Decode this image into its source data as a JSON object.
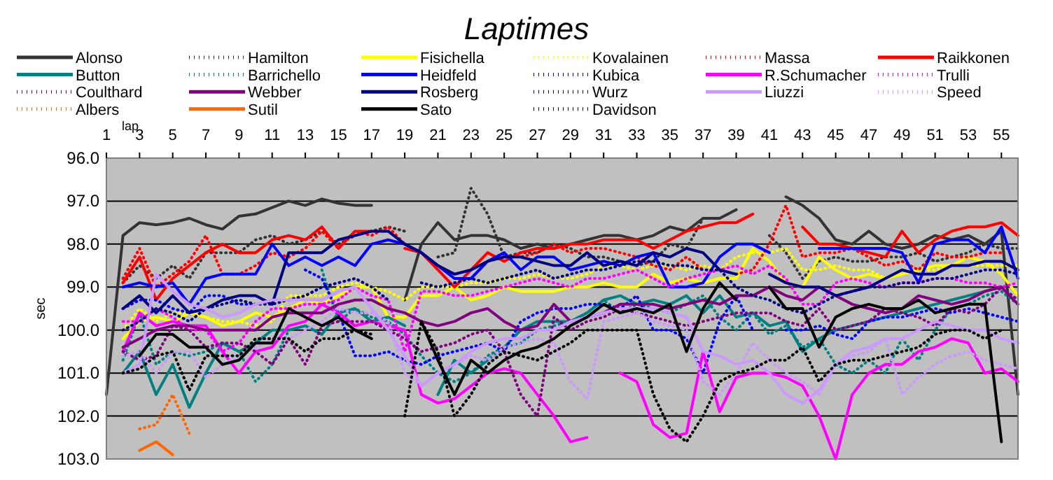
{
  "chart_data": {
    "type": "line",
    "title": "Laptimes",
    "xlabel": "lap",
    "ylabel": "sec",
    "x": [
      1,
      2,
      3,
      4,
      5,
      6,
      7,
      8,
      9,
      10,
      11,
      12,
      13,
      14,
      15,
      16,
      17,
      18,
      19,
      20,
      21,
      22,
      23,
      24,
      25,
      26,
      27,
      28,
      29,
      30,
      31,
      32,
      33,
      34,
      35,
      36,
      37,
      38,
      39,
      40,
      41,
      42,
      43,
      44,
      45,
      46,
      47,
      48,
      49,
      50,
      51,
      52,
      53,
      54,
      55,
      56
    ],
    "xlim": [
      1,
      56
    ],
    "xticks": [
      1,
      3,
      5,
      7,
      9,
      11,
      13,
      15,
      17,
      19,
      21,
      23,
      25,
      27,
      29,
      31,
      33,
      35,
      37,
      39,
      41,
      43,
      45,
      47,
      49,
      51,
      53,
      55
    ],
    "ylim": [
      103,
      96
    ],
    "yticks": [
      {
        "value": 96,
        "label": "96.0"
      },
      {
        "value": 97,
        "label": "97.0"
      },
      {
        "value": 98,
        "label": "98.0"
      },
      {
        "value": 99,
        "label": "99.0"
      },
      {
        "value": 100,
        "label": "100.0"
      },
      {
        "value": 101,
        "label": "101.0"
      },
      {
        "value": 102,
        "label": "102.0"
      },
      {
        "value": 103,
        "label": "103.0"
      }
    ],
    "grid": "y",
    "legend": "top",
    "series": [
      {
        "name": "Alonso",
        "color": "#333333",
        "line_style": "solid",
        "values": [
          101.5,
          97.8,
          97.5,
          97.55,
          97.5,
          97.4,
          97.55,
          97.65,
          97.35,
          97.3,
          97.15,
          97.0,
          97.1,
          96.95,
          97.05,
          97.1,
          97.1,
          null,
          99.3,
          98.0,
          97.5,
          97.9,
          97.8,
          97.8,
          97.9,
          98.1,
          98.0,
          98.1,
          98.0,
          97.9,
          97.8,
          97.8,
          97.9,
          97.8,
          97.6,
          97.7,
          97.4,
          97.4,
          97.2,
          null,
          null,
          96.9,
          97.1,
          97.4,
          97.9,
          98.0,
          97.7,
          98.0,
          98.1,
          98.0,
          97.8,
          97.9,
          97.8,
          98.0,
          97.7,
          101.5
        ]
      },
      {
        "name": "Hamilton",
        "color": "#333333",
        "line_style": "dotted",
        "values": [
          null,
          98.9,
          98.5,
          98.8,
          98.5,
          98.8,
          98.2,
          98.2,
          98.2,
          97.9,
          97.8,
          98.0,
          97.9,
          97.7,
          98.0,
          97.8,
          97.7,
          97.6,
          97.7,
          null,
          98.3,
          98.2,
          96.7,
          97.3,
          98.3,
          98.2,
          98.2,
          98.0,
          98.1,
          98.3,
          98.3,
          98.4,
          98.5,
          98.4,
          98.0,
          98.1,
          97.4,
          97.4,
          null,
          null,
          97.8,
          98.2,
          98.8,
          98.4,
          98.3,
          98.4,
          98.4,
          98.3,
          98.3,
          98.2,
          98.4,
          98.3,
          98.2,
          98.0,
          98.1,
          98.1
        ]
      },
      {
        "name": "Fisichella",
        "color": "#ffff00",
        "line_style": "solid",
        "values": [
          null,
          100.2,
          99.8,
          99.7,
          99.8,
          99.6,
          99.7,
          99.9,
          99.8,
          99.6,
          99.7,
          99.5,
          99.3,
          99.4,
          99.2,
          99.0,
          99.0,
          99.7,
          99.7,
          99.2,
          99.2,
          99.0,
          99.3,
          99.2,
          99.0,
          99.1,
          99.1,
          99.1,
          99.0,
          99.0,
          98.9,
          99.0,
          99.0,
          98.7,
          98.9,
          98.8,
          98.9,
          98.8,
          98.8,
          98.1,
          98.4,
          98.9,
          99.0,
          98.3,
          98.6,
          98.8,
          98.7,
          98.8,
          98.7,
          98.6,
          98.5,
          98.5,
          98.3,
          98.4,
          98.7,
          99.2
        ]
      },
      {
        "name": "Kovalainen",
        "color": "#ffff00",
        "line_style": "dotted",
        "values": [
          null,
          100.0,
          99.5,
          99.8,
          99.6,
          99.6,
          99.7,
          99.8,
          99.8,
          99.9,
          99.8,
          99.2,
          99.2,
          99.2,
          99.0,
          98.9,
          99.0,
          99.1,
          99.3,
          99.0,
          99.0,
          99.0,
          98.9,
          98.9,
          98.8,
          98.8,
          98.7,
          98.8,
          98.8,
          98.7,
          98.5,
          98.5,
          98.6,
          98.5,
          98.5,
          98.6,
          98.5,
          98.6,
          98.3,
          98.2,
          98.2,
          98.1,
          98.6,
          98.6,
          98.5,
          98.6,
          98.6,
          98.8,
          98.7,
          98.6,
          98.6,
          98.5,
          98.5,
          98.5,
          98.5,
          98.5
        ]
      },
      {
        "name": "Massa",
        "color": "#ff0000",
        "line_style": "dotted",
        "values": [
          null,
          98.8,
          98.1,
          99.0,
          98.7,
          98.4,
          97.8,
          98.7,
          98.7,
          98.5,
          98.2,
          98.3,
          98.1,
          97.7,
          98.1,
          97.7,
          97.8,
          97.6,
          98.0,
          98.2,
          98.5,
          98.7,
          98.6,
          98.4,
          98.3,
          98.3,
          98.2,
          98.0,
          98.2,
          98.1,
          98.1,
          98.2,
          98.3,
          98.5,
          98.6,
          98.3,
          98.6,
          null,
          98.7,
          98.6,
          98.0,
          97.1,
          98.3,
          98.2,
          98.2,
          98.1,
          98.3,
          98.5,
          98.4,
          98.6,
          98.2,
          98.3,
          98.3,
          98.2,
          98.2,
          null
        ]
      },
      {
        "name": "Raikkonen",
        "color": "#ff0000",
        "line_style": "solid",
        "values": [
          null,
          98.9,
          98.3,
          99.3,
          98.8,
          98.5,
          98.2,
          98.0,
          98.2,
          98.2,
          97.9,
          97.8,
          97.9,
          97.6,
          98.1,
          97.7,
          97.7,
          null,
          98.1,
          98.2,
          98.6,
          99.0,
          98.6,
          98.2,
          98.4,
          98.2,
          98.1,
          98.1,
          98.0,
          98.0,
          97.9,
          97.9,
          97.9,
          98.1,
          97.9,
          97.7,
          97.6,
          97.5,
          97.5,
          97.3,
          null,
          null,
          97.6,
          98.0,
          98.0,
          98.1,
          98.2,
          98.3,
          97.7,
          98.2,
          97.9,
          97.7,
          97.6,
          97.6,
          97.5,
          97.8
        ]
      },
      {
        "name": "Button",
        "color": "#008080",
        "line_style": "solid",
        "values": [
          null,
          101.0,
          100.5,
          101.5,
          100.8,
          101.8,
          101.0,
          100.3,
          100.5,
          100.3,
          100.0,
          100.0,
          99.9,
          100.1,
          99.6,
          99.5,
          99.8,
          99.7,
          99.9,
          null,
          101.5,
          100.7,
          101.0,
          100.7,
          100.4,
          100.0,
          99.8,
          99.8,
          99.8,
          99.6,
          99.3,
          99.2,
          99.4,
          99.3,
          99.4,
          99.2,
          99.6,
          99.2,
          99.7,
          99.6,
          99.9,
          99.8,
          100.5,
          100.2,
          100.0,
          99.9,
          99.8,
          99.7,
          99.6,
          99.5,
          99.4,
          99.3,
          99.2,
          99.1,
          99.0,
          null
        ]
      },
      {
        "name": "Barrichello",
        "color": "#008080",
        "line_style": "dotted",
        "values": [
          null,
          100.7,
          99.6,
          100.8,
          100.5,
          100.6,
          100.5,
          100.3,
          100.5,
          101.2,
          100.8,
          100.0,
          null,
          98.6,
          99.8,
          99.5,
          99.7,
          99.8,
          100.1,
          100.6,
          101.0,
          101.2,
          101.0,
          100.6,
          100.4,
          100.3,
          100.0,
          99.9,
          99.8,
          99.6,
          99.3,
          99.6,
          99.4,
          99.5,
          99.6,
          99.4,
          99.2,
          99.7,
          100.0,
          99.6,
          100.1,
          99.9,
          100.4,
          100.2,
          100.8,
          101.0,
          100.7,
          101.0,
          100.2,
          100.7,
          100.0,
          99.5,
          99.4,
          99.2,
          99.1,
          99.4
        ]
      },
      {
        "name": "Heidfeld",
        "color": "#0000ff",
        "line_style": "solid",
        "values": [
          null,
          99.0,
          98.9,
          99.0,
          98.9,
          99.4,
          98.8,
          98.7,
          98.7,
          98.7,
          98.0,
          98.5,
          98.3,
          98.5,
          98.3,
          98.5,
          98.0,
          97.9,
          98.0,
          98.2,
          98.5,
          98.8,
          98.8,
          98.4,
          98.2,
          98.6,
          98.3,
          98.3,
          98.6,
          98.5,
          98.4,
          98.5,
          98.3,
          98.2,
          99.0,
          99.0,
          98.9,
          98.3,
          98.0,
          98.0,
          98.2,
          null,
          null,
          98.1,
          98.1,
          98.1,
          98.1,
          98.1,
          98.2,
          98.9,
          98.0,
          97.9,
          97.9,
          98.2,
          97.6,
          98.8
        ]
      },
      {
        "name": "Kubica",
        "color": "#0000ff",
        "line_style": "dotted",
        "values": [
          null,
          99.5,
          99.3,
          99.3,
          99.5,
          99.6,
          99.2,
          99.2,
          99.4,
          99.4,
          null,
          null,
          98.6,
          98.8,
          99.6,
          100.6,
          100.6,
          100.5,
          100.7,
          100.8,
          100.6,
          100.5,
          100.4,
          100.3,
          100.5,
          99.8,
          99.6,
          99.5,
          99.5,
          99.4,
          99.4,
          99.5,
          99.2,
          100.0,
          100.0,
          100.2,
          101.0,
          99.8,
          99.2,
          100.0,
          null,
          100.0,
          100.0,
          99.9,
          100.1,
          100.2,
          99.8,
          99.7,
          99.7,
          99.6,
          99.5,
          99.6,
          99.5,
          99.6,
          99.7,
          99.8
        ]
      },
      {
        "name": "R.Schumacher",
        "color": "#ff00ff",
        "line_style": "solid",
        "values": [
          null,
          100.5,
          99.6,
          99.9,
          99.8,
          99.9,
          99.9,
          100.5,
          101.0,
          100.5,
          100.4,
          99.9,
          99.8,
          99.4,
          99.6,
          99.9,
          99.8,
          99.9,
          100.0,
          101.5,
          101.7,
          101.6,
          101.3,
          101.0,
          100.9,
          101.0,
          101.5,
          102.0,
          102.6,
          102.5,
          null,
          101.0,
          101.2,
          102.2,
          102.5,
          102.4,
          100.5,
          101.9,
          101.1,
          101.0,
          101.0,
          101.1,
          101.3,
          102.0,
          103.0,
          101.5,
          101.0,
          100.8,
          100.8,
          100.5,
          100.4,
          100.2,
          100.3,
          101.0,
          100.9,
          101.2
        ]
      },
      {
        "name": "Trulli",
        "color": "#ff00ff",
        "line_style": "dotted",
        "values": [
          null,
          99.8,
          99.8,
          99.5,
          99.7,
          100.0,
          100.0,
          100.5,
          100.3,
          99.8,
          99.5,
          99.5,
          99.4,
          99.4,
          99.3,
          99.0,
          99.2,
          99.3,
          100.5,
          99.1,
          99.1,
          99.2,
          99.2,
          99.1,
          99.0,
          98.9,
          98.8,
          98.9,
          99.0,
          98.8,
          98.8,
          98.7,
          98.6,
          98.8,
          99.0,
          98.8,
          98.7,
          98.6,
          98.5,
          98.7,
          98.5,
          98.8,
          99.4,
          99.4,
          98.9,
          98.8,
          98.9,
          99.0,
          98.9,
          98.9,
          98.8,
          98.8,
          98.9,
          98.9,
          99.0,
          98.9
        ]
      },
      {
        "name": "Coulthard",
        "color": "#800080",
        "line_style": "dotted",
        "values": [
          null,
          100.5,
          100.7,
          100.6,
          99.9,
          100.0,
          100.4,
          100.3,
          100.3,
          100.5,
          100.8,
          100.2,
          100.8,
          99.9,
          99.8,
          99.8,
          99.8,
          100.0,
          100.2,
          100.5,
          100.4,
          100.3,
          100.1,
          100.0,
          100.5,
          101.5,
          102.0,
          99.7,
          100.0,
          99.8,
          99.7,
          99.5,
          99.6,
          99.7,
          99.8,
          99.9,
          99.8,
          99.7,
          99.6,
          99.6,
          99.6,
          99.8,
          99.9,
          99.5,
          100.0,
          99.9,
          99.8,
          99.5,
          99.6,
          99.7,
          99.9,
          99.5,
          99.6,
          99.4,
          99.0,
          99.3
        ]
      },
      {
        "name": "Webber",
        "color": "#800080",
        "line_style": "solid",
        "values": [
          null,
          100.4,
          100.2,
          100.0,
          99.9,
          99.9,
          100.0,
          100.0,
          100.0,
          100.0,
          99.7,
          99.6,
          99.6,
          99.6,
          99.4,
          99.3,
          99.3,
          99.5,
          99.6,
          99.8,
          99.9,
          99.8,
          99.6,
          99.5,
          99.8,
          100.0,
          99.9,
          99.4,
          99.8,
          99.7,
          99.6,
          99.4,
          99.4,
          99.4,
          99.5,
          99.4,
          99.3,
          99.4,
          99.2,
          99.2,
          99.0,
          99.2,
          99.3,
          99.0,
          99.2,
          99.4,
          99.5,
          99.6,
          99.5,
          99.2,
          99.3,
          99.4,
          99.3,
          99.1,
          99.0,
          99.4
        ]
      },
      {
        "name": "Rosberg",
        "color": "#000080",
        "line_style": "solid",
        "values": [
          null,
          99.5,
          99.2,
          99.6,
          99.2,
          99.6,
          99.5,
          99.3,
          99.2,
          99.2,
          99.4,
          98.2,
          98.2,
          98.2,
          97.9,
          97.8,
          97.7,
          97.7,
          98.0,
          98.2,
          98.5,
          98.7,
          98.6,
          98.4,
          98.3,
          98.3,
          98.4,
          98.5,
          98.5,
          98.2,
          98.5,
          98.4,
          98.5,
          98.2,
          98.3,
          98.1,
          98.2,
          98.6,
          98.7,
          null,
          98.7,
          98.9,
          99.0,
          99.0,
          99.2,
          99.1,
          99.0,
          98.8,
          98.6,
          98.7,
          98.7,
          98.5,
          98.5,
          98.4,
          98.4,
          98.6
        ]
      },
      {
        "name": "Wurz",
        "color": "#000080",
        "line_style": "dotted",
        "values": [
          null,
          100.0,
          99.8,
          99.5,
          99.6,
          99.8,
          99.5,
          99.4,
          99.3,
          99.4,
          99.4,
          99.3,
          99.2,
          99.0,
          98.9,
          98.8,
          99.0,
          99.3,
          null,
          98.9,
          99.0,
          98.9,
          98.8,
          98.9,
          98.8,
          98.7,
          98.6,
          98.8,
          98.7,
          98.6,
          98.6,
          98.5,
          98.4,
          98.4,
          98.5,
          98.5,
          98.6,
          98.6,
          99.0,
          99.2,
          99.3,
          99.5,
          99.6,
          99.4,
          99.2,
          99.1,
          99.0,
          99.0,
          98.9,
          98.9,
          98.8,
          98.8,
          98.7,
          98.6,
          98.6,
          98.7
        ]
      },
      {
        "name": "Liuzzi",
        "color": "#cc99ff",
        "line_style": "solid",
        "values": [
          null,
          101.0,
          100.8,
          98.7,
          99.1,
          99.4,
          99.5,
          99.7,
          99.6,
          99.4,
          99.3,
          99.3,
          99.3,
          99.3,
          99.1,
          99.0,
          99.5,
          100.0,
          100.6,
          101.3,
          101.0,
          100.8,
          100.5,
          100.3,
          100.2,
          100.2,
          100.0,
          100.0,
          99.8,
          99.7,
          99.6,
          99.5,
          99.5,
          99.5,
          99.6,
          99.7,
          100.5,
          100.6,
          100.8,
          100.7,
          101.0,
          101.5,
          101.7,
          101.4,
          100.8,
          100.5,
          100.4,
          100.2,
          100.2,
          100.0,
          99.8,
          99.9,
          100.0,
          100.0,
          100.2,
          100.3
        ]
      },
      {
        "name": "Speed",
        "color": "#cc99ff",
        "line_style": "dotted",
        "values": [
          null,
          100.6,
          100.5,
          101.0,
          100.5,
          100.5,
          101.1,
          100.8,
          100.6,
          100.4,
          100.2,
          100.2,
          100.0,
          99.8,
          99.5,
          99.6,
          99.6,
          99.8,
          101.0,
          101.3,
          101.0,
          100.8,
          100.6,
          100.7,
          100.4,
          100.3,
          100.2,
          100.3,
          101.2,
          101.6,
          99.8,
          99.7,
          99.6,
          99.8,
          99.9,
          100.0,
          101.2,
          101.5,
          101.0,
          100.3,
          100.7,
          101.0,
          101.2,
          101.5,
          100.8,
          100.6,
          100.5,
          100.2,
          101.5,
          101.1,
          100.8,
          100.6,
          100.5,
          100.7,
          100.8,
          100.9
        ]
      },
      {
        "name": "Albers",
        "color": "#ff6600",
        "line_style": "dotted",
        "values": [
          null,
          null,
          102.3,
          102.2,
          101.5,
          102.4,
          null,
          null,
          null,
          null,
          null,
          null,
          null,
          null,
          null,
          null,
          null,
          null,
          null,
          null,
          null,
          null,
          null,
          null,
          null,
          null,
          null,
          null,
          null,
          null,
          null,
          null,
          null,
          null,
          null,
          null,
          null,
          null,
          null,
          null,
          null,
          null,
          null,
          null,
          null,
          null,
          null,
          null,
          null,
          null,
          null,
          null,
          null,
          null,
          null,
          null
        ]
      },
      {
        "name": "Sutil",
        "color": "#ff6600",
        "line_style": "solid",
        "values": [
          null,
          null,
          102.8,
          102.6,
          102.9,
          null,
          null,
          null,
          null,
          null,
          null,
          null,
          null,
          null,
          null,
          null,
          null,
          null,
          null,
          null,
          null,
          null,
          null,
          null,
          null,
          null,
          null,
          null,
          null,
          null,
          null,
          null,
          null,
          null,
          null,
          null,
          null,
          null,
          null,
          null,
          null,
          null,
          null,
          null,
          null,
          null,
          null,
          null,
          null,
          null,
          null,
          null,
          null,
          null,
          null,
          null
        ]
      },
      {
        "name": "Sato",
        "color": "#000000",
        "line_style": "solid",
        "values": [
          null,
          null,
          100.6,
          100.1,
          100.1,
          100.4,
          100.4,
          100.8,
          100.7,
          100.3,
          100.3,
          99.5,
          99.7,
          99.9,
          99.7,
          100.0,
          100.2,
          null,
          null,
          99.8,
          100.7,
          101.5,
          100.7,
          101.0,
          100.7,
          100.5,
          100.4,
          100.2,
          99.9,
          99.7,
          99.4,
          99.6,
          99.5,
          99.6,
          99.4,
          100.5,
          99.5,
          98.9,
          99.3,
          null,
          99.0,
          99.5,
          99.5,
          100.4,
          99.7,
          99.5,
          99.4,
          99.5,
          99.5,
          99.3,
          99.6,
          99.5,
          99.4,
          99.4,
          102.6,
          null
        ]
      },
      {
        "name": "Davidson",
        "color": "#000000",
        "line_style": "dotted",
        "values": [
          null,
          101.0,
          100.9,
          100.6,
          100.5,
          101.4,
          100.6,
          100.6,
          100.6,
          100.2,
          100.2,
          100.2,
          100.5,
          100.2,
          100.2,
          100.0,
          100.1,
          null,
          102.0,
          99.8,
          100.5,
          102.0,
          101.5,
          100.8,
          100.5,
          100.6,
          100.7,
          100.5,
          100.3,
          100.0,
          100.0,
          100.0,
          100.0,
          101.5,
          102.3,
          102.6,
          102.0,
          101.2,
          101.0,
          100.9,
          100.7,
          100.7,
          100.4,
          101.2,
          100.8,
          100.7,
          100.7,
          100.6,
          100.5,
          100.4,
          100.1,
          100.0,
          100.0,
          100.2,
          100.0,
          null
        ]
      }
    ]
  }
}
